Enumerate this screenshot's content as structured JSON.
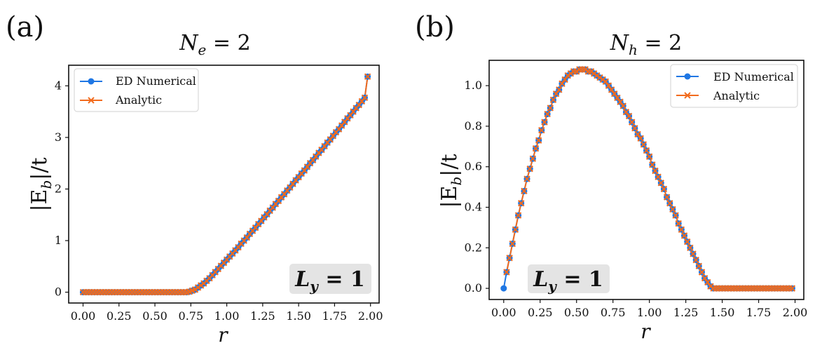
{
  "figure": {
    "panel_a_label": "(a)",
    "panel_b_label": "(b)"
  },
  "chart_data": [
    {
      "type": "line",
      "id": "a",
      "title": "N_e = 2",
      "title_main": "N",
      "title_sub": "e",
      "title_rhs": " = 2",
      "xlabel": "r",
      "ylabel": "|E_b|/t",
      "ylabel_pre": "|E",
      "ylabel_sub": "b",
      "ylabel_post": "|/t",
      "xlim": [
        -0.1,
        2.06
      ],
      "ylim": [
        -0.21,
        4.4
      ],
      "xticks": [
        0.0,
        0.25,
        0.5,
        0.75,
        1.0,
        1.25,
        1.5,
        1.75,
        2.0
      ],
      "xtick_labels": [
        "0.00",
        "0.25",
        "0.50",
        "0.75",
        "1.00",
        "1.25",
        "1.50",
        "1.75",
        "2.00"
      ],
      "yticks": [
        0,
        1,
        2,
        3,
        4
      ],
      "ytick_labels": [
        "0",
        "1",
        "2",
        "3",
        "4"
      ],
      "legend": {
        "position": "top-left",
        "entries": [
          "ED Numerical",
          "Analytic"
        ]
      },
      "annotation": {
        "text": "L_y = 1",
        "main": "L",
        "sub": "y",
        "rhs": " = 1",
        "position": "bottom-right"
      },
      "series": [
        {
          "name": "ED Numerical",
          "color": "#1f77e4",
          "marker": "circle",
          "x": [
            0.0,
            0.02,
            0.04,
            0.06,
            0.08,
            0.1,
            0.12,
            0.14,
            0.16,
            0.18,
            0.2,
            0.22,
            0.24,
            0.26,
            0.28,
            0.3,
            0.32,
            0.34,
            0.36,
            0.38,
            0.4,
            0.42,
            0.44,
            0.46,
            0.48,
            0.5,
            0.52,
            0.54,
            0.56,
            0.58,
            0.6,
            0.62,
            0.64,
            0.66,
            0.68,
            0.7,
            0.72,
            0.74,
            0.76,
            0.78,
            0.8,
            0.82,
            0.84,
            0.86,
            0.88,
            0.9,
            0.92,
            0.94,
            0.96,
            0.98,
            1.0,
            1.02,
            1.04,
            1.06,
            1.08,
            1.1,
            1.12,
            1.14,
            1.16,
            1.18,
            1.2,
            1.22,
            1.24,
            1.26,
            1.28,
            1.3,
            1.32,
            1.34,
            1.36,
            1.38,
            1.4,
            1.42,
            1.44,
            1.46,
            1.48,
            1.5,
            1.52,
            1.54,
            1.56,
            1.58,
            1.6,
            1.62,
            1.64,
            1.66,
            1.68,
            1.7,
            1.72,
            1.74,
            1.76,
            1.78,
            1.8,
            1.82,
            1.84,
            1.86,
            1.88,
            1.9,
            1.92,
            1.94,
            1.96,
            1.98
          ],
          "y": [
            0,
            0,
            0,
            0,
            0,
            0,
            0,
            0,
            0,
            0,
            0,
            0,
            0,
            0,
            0,
            0,
            0,
            0,
            0,
            0,
            0,
            0,
            0,
            0,
            0,
            0,
            0,
            0,
            0,
            0,
            0,
            0,
            0,
            0,
            0,
            0,
            0,
            0.01,
            0.03,
            0.05,
            0.09,
            0.13,
            0.17,
            0.22,
            0.27,
            0.33,
            0.39,
            0.45,
            0.51,
            0.57,
            0.63,
            0.69,
            0.75,
            0.81,
            0.87,
            0.94,
            1.0,
            1.06,
            1.13,
            1.19,
            1.25,
            1.32,
            1.38,
            1.45,
            1.51,
            1.58,
            1.64,
            1.71,
            1.77,
            1.84,
            1.9,
            1.97,
            2.03,
            2.1,
            2.17,
            2.23,
            2.3,
            2.36,
            2.43,
            2.5,
            2.56,
            2.63,
            2.7,
            2.76,
            2.83,
            2.9,
            2.96,
            3.03,
            3.1,
            3.16,
            3.23,
            3.3,
            3.37,
            3.43,
            3.5,
            3.57,
            3.63,
            3.7,
            3.77,
            4.18
          ]
        },
        {
          "name": "Analytic",
          "color": "#f26b1d",
          "marker": "x",
          "same_values_as": "ED Numerical"
        }
      ]
    },
    {
      "type": "line",
      "id": "b",
      "title": "N_h = 2",
      "title_main": "N",
      "title_sub": "h",
      "title_rhs": " = 2",
      "xlabel": "r",
      "ylabel": "|E_b|/t",
      "ylabel_pre": "|E",
      "ylabel_sub": "b",
      "ylabel_post": "|/t",
      "xlim": [
        -0.1,
        2.06
      ],
      "ylim": [
        -0.055,
        1.125
      ],
      "xticks": [
        0.0,
        0.25,
        0.5,
        0.75,
        1.0,
        1.25,
        1.5,
        1.75,
        2.0
      ],
      "xtick_labels": [
        "0.00",
        "0.25",
        "0.50",
        "0.75",
        "1.00",
        "1.25",
        "1.50",
        "1.75",
        "2.00"
      ],
      "yticks": [
        0.0,
        0.2,
        0.4,
        0.6,
        0.8,
        1.0
      ],
      "ytick_labels": [
        "0.0",
        "0.2",
        "0.4",
        "0.6",
        "0.8",
        "1.0"
      ],
      "legend": {
        "position": "top-right",
        "entries": [
          "ED Numerical",
          "Analytic"
        ]
      },
      "annotation": {
        "text": "L_y = 1",
        "main": "L",
        "sub": "y",
        "rhs": " = 1",
        "position": "bottom-left"
      },
      "series": [
        {
          "name": "ED Numerical",
          "color": "#1f77e4",
          "marker": "circle",
          "x": [
            0.0,
            0.02,
            0.04,
            0.06,
            0.08,
            0.1,
            0.12,
            0.14,
            0.16,
            0.18,
            0.2,
            0.22,
            0.24,
            0.26,
            0.28,
            0.3,
            0.32,
            0.34,
            0.36,
            0.38,
            0.4,
            0.42,
            0.44,
            0.46,
            0.48,
            0.5,
            0.52,
            0.54,
            0.56,
            0.58,
            0.6,
            0.62,
            0.64,
            0.66,
            0.68,
            0.7,
            0.72,
            0.74,
            0.76,
            0.78,
            0.8,
            0.82,
            0.84,
            0.86,
            0.88,
            0.9,
            0.92,
            0.94,
            0.96,
            0.98,
            1.0,
            1.02,
            1.04,
            1.06,
            1.08,
            1.1,
            1.12,
            1.14,
            1.16,
            1.18,
            1.2,
            1.22,
            1.24,
            1.26,
            1.28,
            1.3,
            1.32,
            1.34,
            1.36,
            1.38,
            1.4,
            1.42,
            1.44,
            1.46,
            1.48,
            1.5,
            1.52,
            1.54,
            1.56,
            1.58,
            1.6,
            1.62,
            1.64,
            1.66,
            1.68,
            1.7,
            1.72,
            1.74,
            1.76,
            1.78,
            1.8,
            1.82,
            1.84,
            1.86,
            1.88,
            1.9,
            1.92,
            1.94,
            1.96,
            1.98
          ],
          "y": [
            0.0,
            0.08,
            0.15,
            0.22,
            0.29,
            0.36,
            0.42,
            0.48,
            0.54,
            0.59,
            0.64,
            0.69,
            0.73,
            0.78,
            0.82,
            0.86,
            0.89,
            0.93,
            0.96,
            0.98,
            1.01,
            1.03,
            1.05,
            1.06,
            1.07,
            1.07,
            1.08,
            1.08,
            1.08,
            1.07,
            1.07,
            1.06,
            1.05,
            1.04,
            1.03,
            1.02,
            1.0,
            0.98,
            0.96,
            0.94,
            0.92,
            0.9,
            0.87,
            0.85,
            0.82,
            0.79,
            0.76,
            0.74,
            0.71,
            0.68,
            0.65,
            0.61,
            0.58,
            0.55,
            0.52,
            0.49,
            0.45,
            0.42,
            0.39,
            0.36,
            0.32,
            0.29,
            0.26,
            0.23,
            0.2,
            0.17,
            0.14,
            0.11,
            0.08,
            0.05,
            0.03,
            0.01,
            0,
            0,
            0,
            0,
            0,
            0,
            0,
            0,
            0,
            0,
            0,
            0,
            0,
            0,
            0,
            0,
            0,
            0,
            0,
            0,
            0,
            0,
            0,
            0,
            0,
            0,
            0,
            0
          ]
        },
        {
          "name": "Analytic",
          "color": "#f26b1d",
          "marker": "x",
          "same_values_as": "ED Numerical",
          "starts_at_x": 0.02
        }
      ]
    }
  ]
}
